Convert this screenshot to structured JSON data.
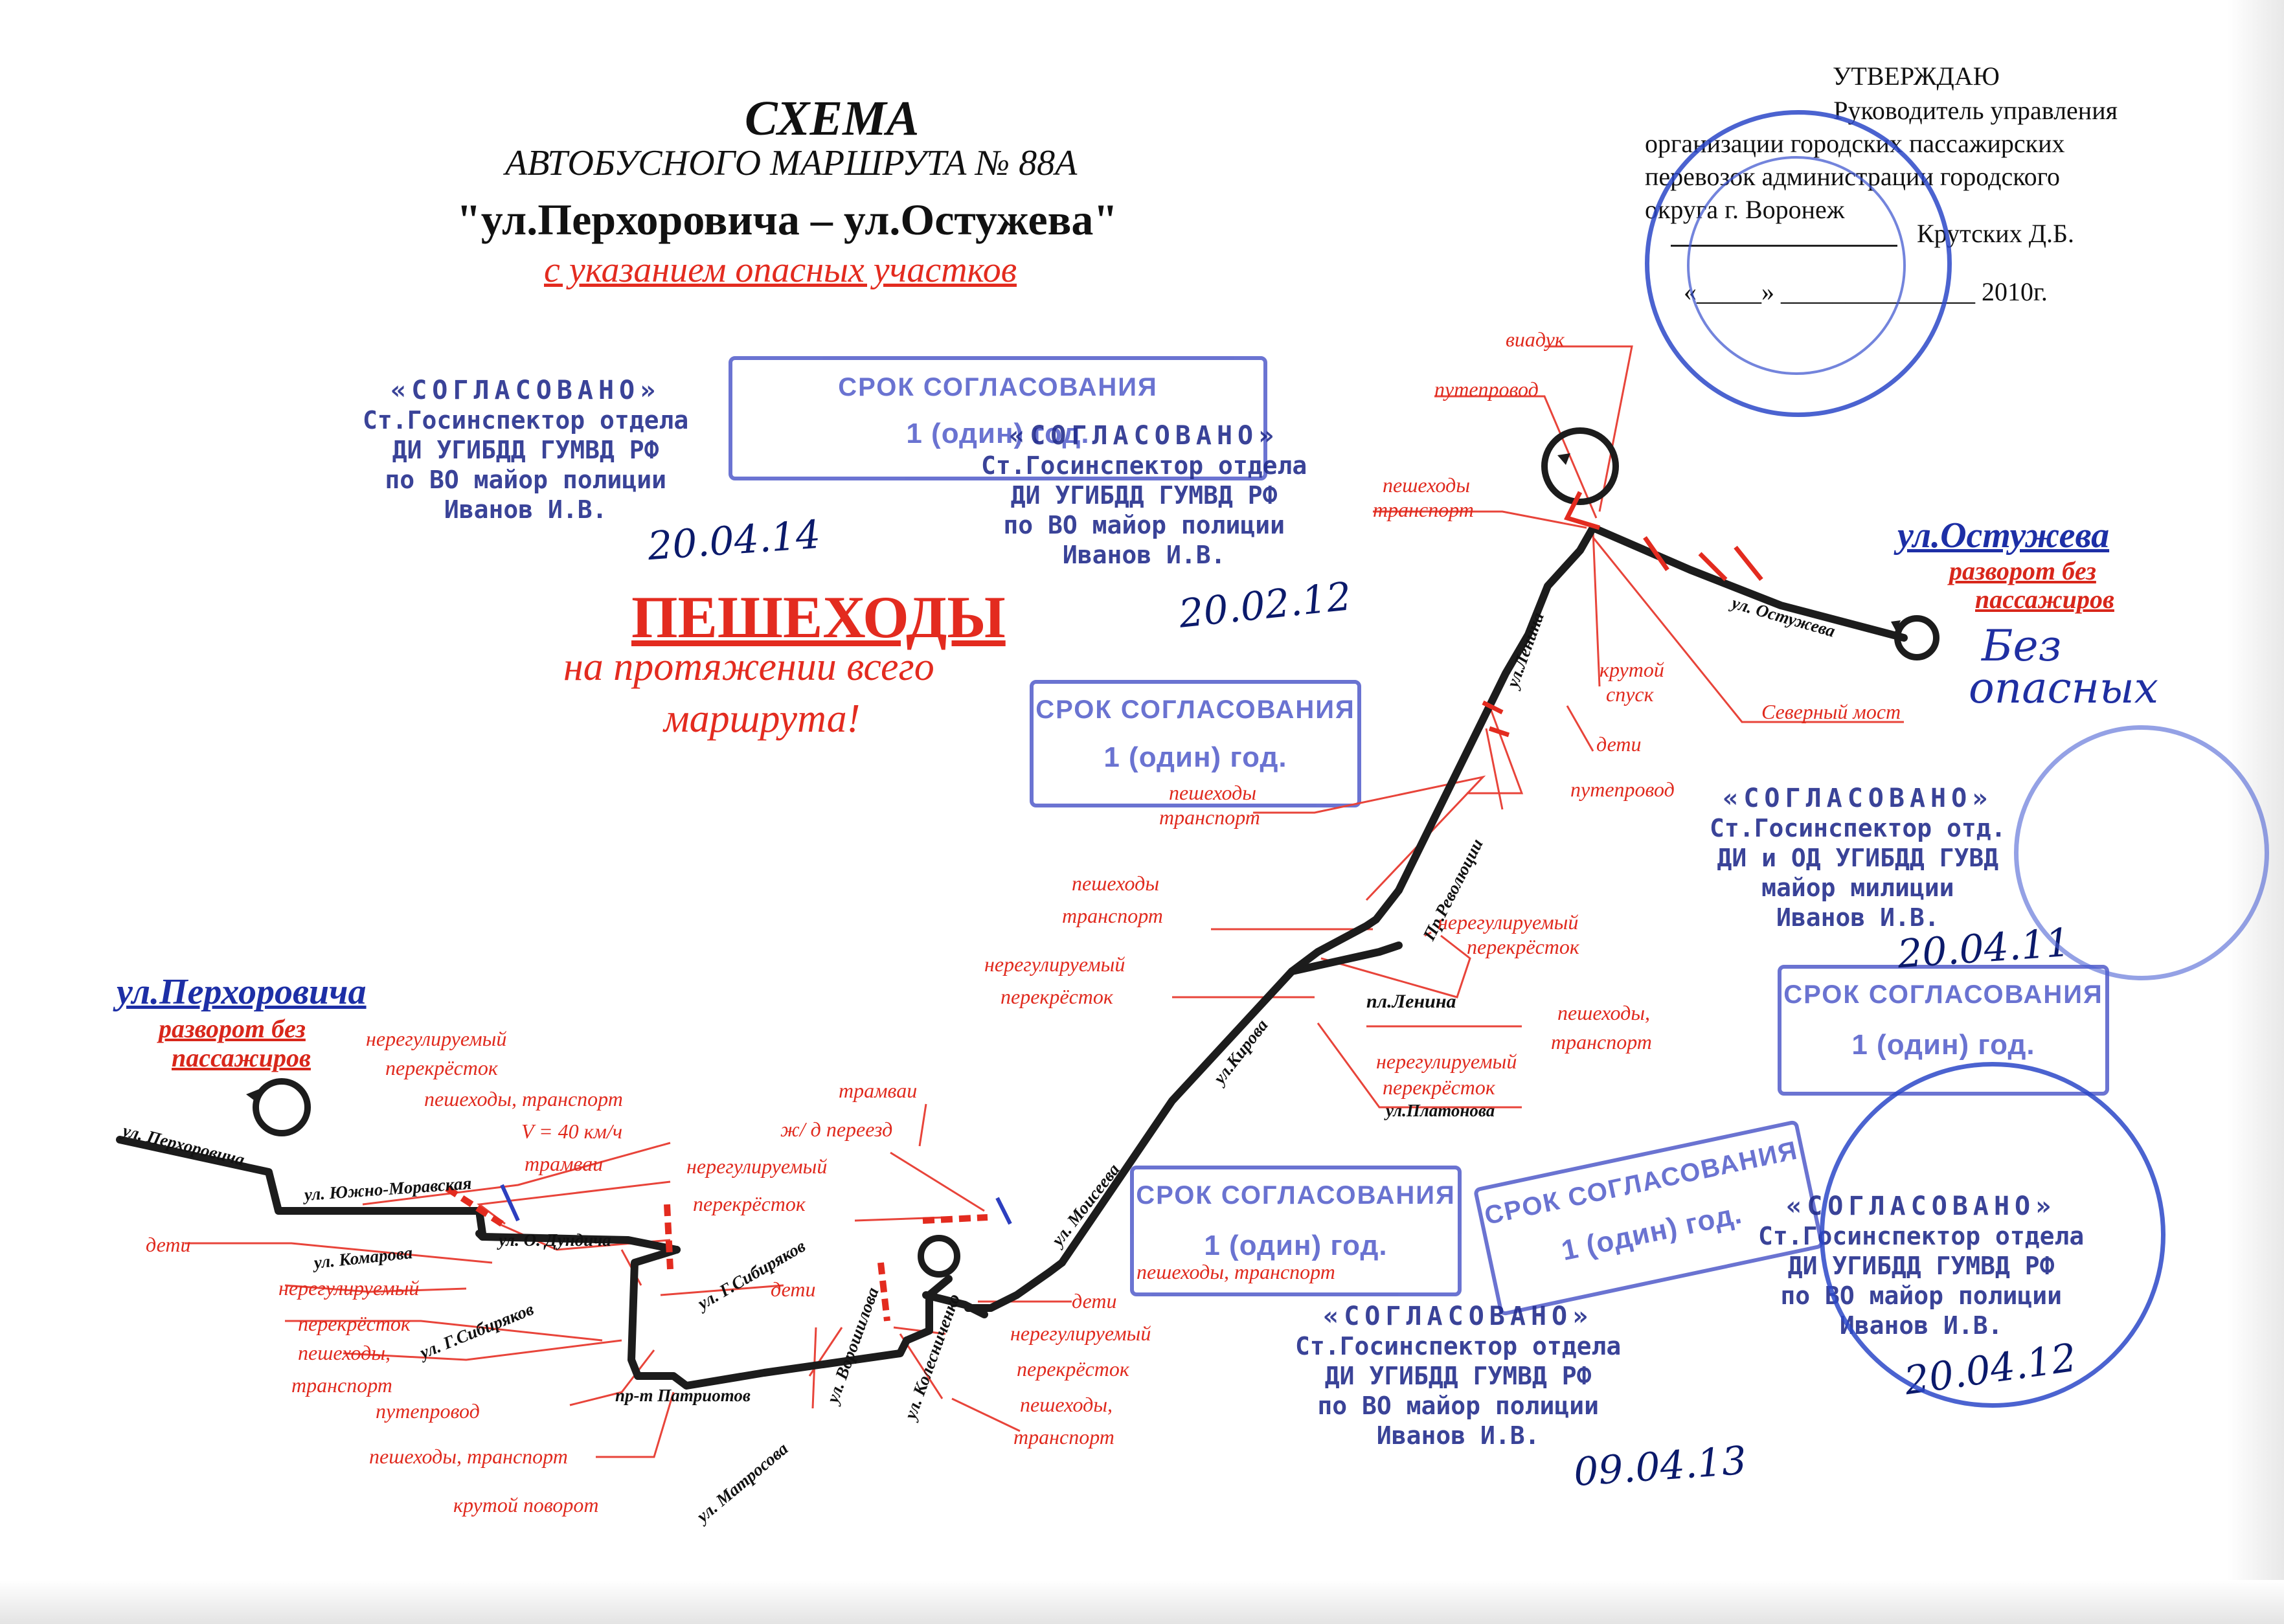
{
  "header": {
    "title": "СХЕМА",
    "subtitle": "АВТОБУСНОГО МАРШРУТА № 88А",
    "route": "\"ул.Перхоровича – ул.Остужева\"",
    "note": "с указанием опасных участков"
  },
  "approval": {
    "heading": "УТВЕРЖДАЮ",
    "position_lines": [
      "Руководитель управления",
      "организации городских пассажирских",
      "перевозок администрации городского",
      "округа г. Воронеж"
    ],
    "name": "Крутских Д.Б.",
    "date_line": "«_____» _______________ 2010г."
  },
  "pedestrian_notice": {
    "heading": "ПЕШЕХОДЫ",
    "line1": "на протяжении всего",
    "line2": "маршрута!"
  },
  "terminals": {
    "start": {
      "name": "ул.Перхоровича",
      "note1": "разворот без",
      "note2": "пассажиров"
    },
    "end": {
      "name": "ул.Остужева",
      "note1": "разворот без",
      "note2": "пассажиров"
    }
  },
  "hand_note": {
    "line1": "Без",
    "line2": "опасных"
  },
  "annotations": {
    "viaduk": "виадук",
    "puteprovod_top": "путепровод",
    "peshehody_transport_top_1": "пешеходы",
    "peshehody_transport_top_2": "транспорт",
    "krutoi_1": "крутой",
    "krutoi_2": "спуск",
    "deti_top": "дети",
    "puteprovod_mid": "путепровод",
    "severny_most": "Северный мост",
    "peshehody_mid_1": "пешеходы",
    "peshehody_mid_2": "транспорт",
    "peshehody_left_1": "пешеходы",
    "peshehody_left_2": "транспорт",
    "nereg_left_1": "нерегулируемый",
    "nereg_left_2": "перекрёсток",
    "nereg_right_1": "нерегулируемый",
    "nereg_right_2": "перекрёсток",
    "peshehody_lenina_1": "пешеходы,",
    "peshehody_lenina_2": "транспорт",
    "nereg_platonova_1": "нерегулируемый",
    "nereg_platonova_2": "перекрёсток",
    "tramvai_mid": "трамваи",
    "zhd_pereezd": "ж/ д переезд",
    "nereg_start_1": "нерегулируемый",
    "nereg_start_2": "перекрёсток",
    "peshehody_start": "пешеходы, транспорт",
    "speed": "V = 40 км/ч",
    "tramvai_left": "трамваи",
    "nereg_center_1": "нерегулируемый",
    "nereg_center_2": "перекрёсток",
    "deti_left": "дети",
    "deti_center": "дети",
    "nereg_bottom_1": "нерегулируемый",
    "nereg_bottom_2": "перекрёсток",
    "peshehody_bottom_1": "пешеходы,",
    "peshehody_bottom_2": "транспорт",
    "puteprovod_bottom": "путепровод",
    "peshehody_transport_bottom": "пешеходы, транспорт",
    "krutoi_povorot": "крутой поворот",
    "deti_right_bottom": "дети",
    "nereg_right_bottom_1": "нерегулируемый",
    "nereg_right_bottom_2": "перекрёсток",
    "peshehody_right_bottom_1": "пешеходы,",
    "peshehody_right_bottom_2": "транспорт",
    "peshehody_stamp": "пешеходы, транспорт"
  },
  "streets": {
    "perhorovicha": "ул. Перхоровича",
    "yuzhno_moravskaya": "ул. Южно-Моравская",
    "komarova": "ул. Комарова",
    "dundicha": "ул. О. Дундича",
    "sibiryakov_upper": "ул. Г.Сибиряков",
    "sibiryakov_lower": "ул. Г.Сибиряков",
    "patriotov": "пр-т Патриотов",
    "matrosova": "ул. Матросова",
    "voroshilova": "ул. Ворошилова",
    "kolesnichenko": "ул. Колесниченко",
    "moiseeva": "ул. Моисеева",
    "kirova": "ул.Кирова",
    "lenina_square": "пл.Ленина",
    "platonova": "ул.Платонова",
    "revolyutsii": "Пр.Революции",
    "lenina": "ул.Ленина",
    "ostuzheva": "ул. Остужева"
  },
  "stamps": {
    "term_label_1": "СРОК СОГЛАСОВАНИЯ",
    "term_value": "1 (один) год.",
    "agreed": "«СОГЛАСОВАНО»",
    "inspector_line1": "Ст.Госинспектор отдела",
    "inspector_line2": "ДИ УГИБДД ГУМВД РФ",
    "inspector_line3": "по ВО майор полиции",
    "inspector_name": "Иванов И.В.",
    "inspector2_line1": "Ст.Госинспектор отд.",
    "inspector2_line2": "ДИ и ОД УГИБДД ГУВД",
    "inspector2_line3": "майор милиции",
    "date_1": "20.04.14",
    "date_2": "20.02.12",
    "date_3": "20.04.11",
    "date_4": "09.04.13",
    "date_5": "20.04.12"
  },
  "colors": {
    "route": "#1c1c1c",
    "annotation": "#e02a1e",
    "terminal_name": "#1d2fa6",
    "stamp": "#4a55c8",
    "seal": "#2c48c8"
  }
}
